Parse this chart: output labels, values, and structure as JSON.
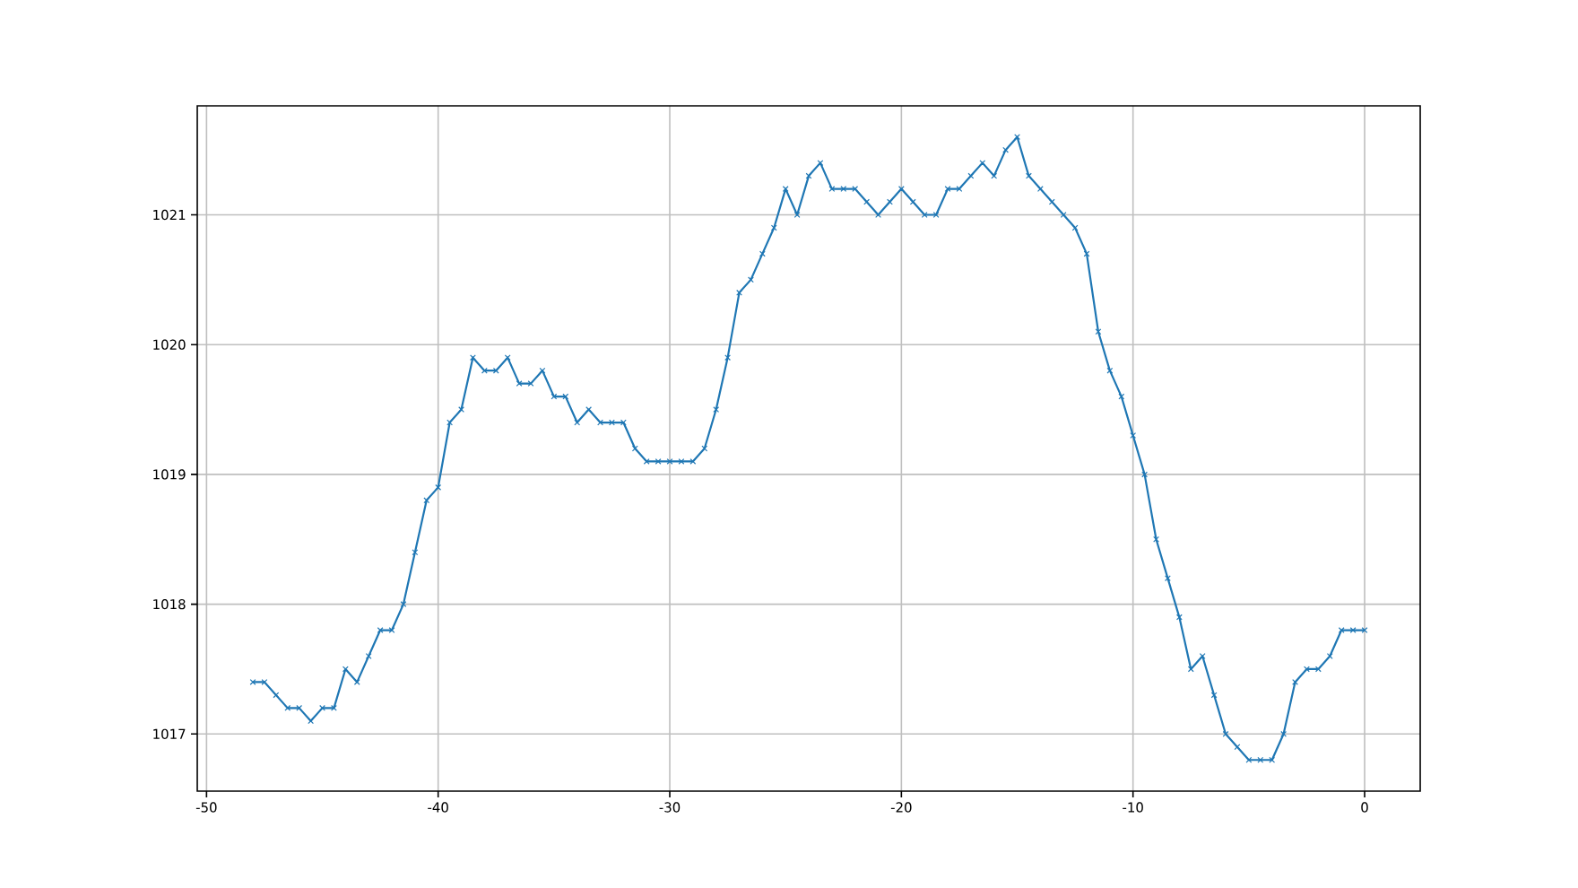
{
  "chart_data": {
    "type": "line",
    "x": [
      -48,
      -47.5,
      -47,
      -46.5,
      -46,
      -45.5,
      -45,
      -44.5,
      -44,
      -43.5,
      -43,
      -42.5,
      -42,
      -41.5,
      -41,
      -40.5,
      -40,
      -39.5,
      -39,
      -38.5,
      -38,
      -37.5,
      -37,
      -36.5,
      -36,
      -35.5,
      -35,
      -34.5,
      -34,
      -33.5,
      -33,
      -32.5,
      -32,
      -31.5,
      -31,
      -30.5,
      -30,
      -29.5,
      -29,
      -28.5,
      -28,
      -27.5,
      -27,
      -26.5,
      -26,
      -25.5,
      -25,
      -24.5,
      -24,
      -23.5,
      -23,
      -22.5,
      -22,
      -21.5,
      -21,
      -20.5,
      -20,
      -19.5,
      -19,
      -18.5,
      -18,
      -17.5,
      -17,
      -16.5,
      -16,
      -15.5,
      -15,
      -14.5,
      -14,
      -13.5,
      -13,
      -12.5,
      -12,
      -11.5,
      -11,
      -10.5,
      -10,
      -9.5,
      -9,
      -8.5,
      -8,
      -7.5,
      -7,
      -6.5,
      -6,
      -5.5,
      -5,
      -4.5,
      -4,
      -3.5,
      -3,
      -2.5,
      -2,
      -1.5,
      -1,
      -0.5,
      0
    ],
    "series": [
      {
        "color": "#1f77b4",
        "values": [
          1017.4,
          1017.4,
          1017.3,
          1017.2,
          1017.2,
          1017.1,
          1017.2,
          1017.2,
          1017.5,
          1017.4,
          1017.6,
          1017.8,
          1017.8,
          1018.0,
          1018.4,
          1018.8,
          1018.9,
          1019.4,
          1019.5,
          1019.9,
          1019.8,
          1019.8,
          1019.9,
          1019.7,
          1019.7,
          1019.8,
          1019.6,
          1019.6,
          1019.4,
          1019.5,
          1019.4,
          1019.4,
          1019.4,
          1019.2,
          1019.1,
          1019.1,
          1019.1,
          1019.1,
          1019.1,
          1019.2,
          1019.5,
          1019.9,
          1020.4,
          1020.5,
          1020.7,
          1020.9,
          1021.2,
          1021.0,
          1021.3,
          1021.4,
          1021.2,
          1021.2,
          1021.2,
          1021.1,
          1021.0,
          1021.1,
          1021.2,
          1021.1,
          1021.0,
          1021.0,
          1021.2,
          1021.2,
          1021.3,
          1021.4,
          1021.3,
          1021.5,
          1021.6,
          1021.3,
          1021.2,
          1021.1,
          1021.0,
          1020.9,
          1020.7,
          1020.1,
          1019.8,
          1019.6,
          1019.3,
          1019.0,
          1018.5,
          1018.2,
          1017.9,
          1017.5,
          1017.6,
          1017.3,
          1017.0,
          1016.9,
          1016.8,
          1016.8,
          1016.8,
          1017.0,
          1017.4,
          1017.5,
          1017.5,
          1017.6,
          1017.8,
          1017.8,
          1017.8
        ]
      }
    ],
    "xlim": [
      -50.4,
      2.4
    ],
    "ylim": [
      1016.56,
      1021.84
    ],
    "xticks": [
      -50,
      -40,
      -30,
      -20,
      -10,
      0
    ],
    "yticks": [
      1017,
      1018,
      1019,
      1020,
      1021
    ],
    "grid": true,
    "marker": "cross",
    "line_style": "solid"
  }
}
